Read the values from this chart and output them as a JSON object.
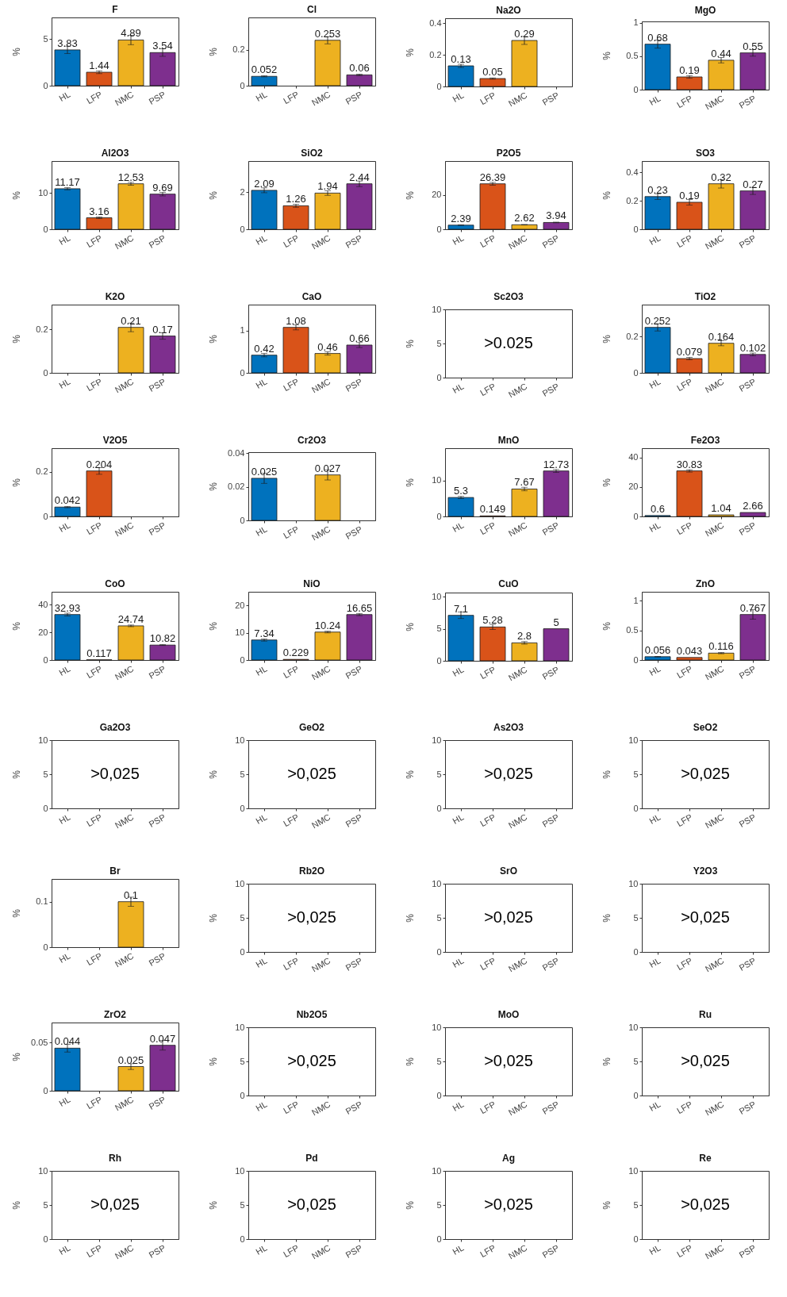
{
  "chart_data": [
    {
      "type": "bar",
      "title": "F",
      "categories": [
        "HL",
        "LFP",
        "NMC",
        "PSP"
      ],
      "values": [
        3.83,
        1.44,
        4.89,
        3.54
      ],
      "errors": [
        0.4,
        0.15,
        0.5,
        0.4
      ],
      "colors": [
        "#0072bd",
        "#d95319",
        "#edb120",
        "#7e2f8e"
      ],
      "ylabel": "%",
      "ylim": [
        0,
        7.3
      ],
      "yticks": [
        0,
        5
      ],
      "data_labels": true
    },
    {
      "type": "bar",
      "title": "Cl",
      "categories": [
        "HL",
        "LFP",
        "NMC",
        "PSP"
      ],
      "values": [
        0.052,
        null,
        0.253,
        0.06
      ],
      "errors": [
        0.003,
        null,
        0.02,
        0.004
      ],
      "colors": [
        "#0072bd",
        null,
        "#edb120",
        "#7e2f8e"
      ],
      "ylabel": "%",
      "ylim": [
        0,
        0.38
      ],
      "yticks": [
        0,
        0.2
      ],
      "data_labels": true
    },
    {
      "type": "bar",
      "title": "Na2O",
      "categories": [
        "HL",
        "LFP",
        "NMC",
        "PSP"
      ],
      "values": [
        0.13,
        0.05,
        0.29,
        null
      ],
      "errors": [
        0.01,
        0.004,
        0.025,
        null
      ],
      "colors": [
        "#0072bd",
        "#d95319",
        "#edb120",
        null
      ],
      "ylabel": "%",
      "ylim": [
        0,
        0.43
      ],
      "yticks": [
        0,
        0.2,
        0.4
      ],
      "data_labels": true
    },
    {
      "type": "bar",
      "title": "MgO",
      "categories": [
        "HL",
        "LFP",
        "NMC",
        "PSP"
      ],
      "values": [
        0.68,
        0.19,
        0.44,
        0.55
      ],
      "errors": [
        0.06,
        0.02,
        0.04,
        0.05
      ],
      "colors": [
        "#0072bd",
        "#d95319",
        "#edb120",
        "#7e2f8e"
      ],
      "ylabel": "%",
      "ylim": [
        0,
        1.02
      ],
      "yticks": [
        0,
        0.5,
        1
      ],
      "data_labels": true
    },
    {
      "type": "bar",
      "title": "Al2O3",
      "categories": [
        "HL",
        "LFP",
        "NMC",
        "PSP"
      ],
      "values": [
        11.17,
        3.16,
        12.53,
        9.69
      ],
      "errors": [
        0.3,
        0.2,
        0.4,
        0.5
      ],
      "colors": [
        "#0072bd",
        "#d95319",
        "#edb120",
        "#7e2f8e"
      ],
      "ylabel": "%",
      "ylim": [
        0,
        18.8
      ],
      "yticks": [
        0,
        10
      ],
      "data_labels": true
    },
    {
      "type": "bar",
      "title": "SiO2",
      "categories": [
        "HL",
        "LFP",
        "NMC",
        "PSP"
      ],
      "values": [
        2.09,
        1.26,
        1.94,
        2.44
      ],
      "errors": [
        0.13,
        0.08,
        0.12,
        0.15
      ],
      "colors": [
        "#0072bd",
        "#d95319",
        "#edb120",
        "#7e2f8e"
      ],
      "ylabel": "%",
      "ylim": [
        0,
        3.66
      ],
      "yticks": [
        0,
        2
      ],
      "data_labels": true
    },
    {
      "type": "bar",
      "title": "P2O5",
      "categories": [
        "HL",
        "LFP",
        "NMC",
        "PSP"
      ],
      "values": [
        2.39,
        26.39,
        2.62,
        3.94
      ],
      "errors": [
        0.1,
        0.8,
        0.1,
        0.2
      ],
      "colors": [
        "#0072bd",
        "#d95319",
        "#edb120",
        "#7e2f8e"
      ],
      "ylabel": "%",
      "ylim": [
        0,
        39.6
      ],
      "yticks": [
        0,
        20
      ],
      "data_labels": true
    },
    {
      "type": "bar",
      "title": "SO3",
      "categories": [
        "HL",
        "LFP",
        "NMC",
        "PSP"
      ],
      "values": [
        0.23,
        0.19,
        0.32,
        0.27
      ],
      "errors": [
        0.02,
        0.02,
        0.03,
        0.025
      ],
      "colors": [
        "#0072bd",
        "#d95319",
        "#edb120",
        "#7e2f8e"
      ],
      "ylabel": "%",
      "ylim": [
        0,
        0.48
      ],
      "yticks": [
        0,
        0.2,
        0.4
      ],
      "data_labels": true
    },
    {
      "type": "bar",
      "title": "K2O",
      "categories": [
        "HL",
        "LFP",
        "NMC",
        "PSP"
      ],
      "values": [
        null,
        null,
        0.21,
        0.17
      ],
      "errors": [
        null,
        null,
        0.02,
        0.015
      ],
      "colors": [
        null,
        null,
        "#edb120",
        "#7e2f8e"
      ],
      "ylabel": "%",
      "ylim": [
        0,
        0.315
      ],
      "yticks": [
        0,
        0.2
      ],
      "data_labels": true
    },
    {
      "type": "bar",
      "title": "CaO",
      "categories": [
        "HL",
        "LFP",
        "NMC",
        "PSP"
      ],
      "values": [
        0.42,
        1.08,
        0.46,
        0.66
      ],
      "errors": [
        0.04,
        0.06,
        0.04,
        0.06
      ],
      "colors": [
        "#0072bd",
        "#d95319",
        "#edb120",
        "#7e2f8e"
      ],
      "ylabel": "%",
      "ylim": [
        0,
        1.62
      ],
      "yticks": [
        0,
        1
      ],
      "data_labels": true
    },
    {
      "type": "bar",
      "title": "Sc2O3",
      "categories": [
        "HL",
        "LFP",
        "NMC",
        "PSP"
      ],
      "values": [
        null,
        null,
        null,
        null
      ],
      "ylabel": "%",
      "ylim": [
        0,
        10
      ],
      "yticks": [
        0,
        5,
        10
      ],
      "annotations": [
        ">0.025"
      ]
    },
    {
      "type": "bar",
      "title": "TiO2",
      "categories": [
        "HL",
        "LFP",
        "NMC",
        "PSP"
      ],
      "values": [
        0.252,
        0.079,
        0.164,
        0.102
      ],
      "errors": [
        0.02,
        0.007,
        0.014,
        0.008
      ],
      "colors": [
        "#0072bd",
        "#d95319",
        "#edb120",
        "#7e2f8e"
      ],
      "ylabel": "%",
      "ylim": [
        0,
        0.378
      ],
      "yticks": [
        0,
        0.2
      ],
      "data_labels": true
    },
    {
      "type": "bar",
      "title": "V2O5",
      "categories": [
        "HL",
        "LFP",
        "NMC",
        "PSP"
      ],
      "values": [
        0.042,
        0.204,
        null,
        null
      ],
      "errors": [
        0.003,
        0.015,
        null,
        null
      ],
      "colors": [
        "#0072bd",
        "#d95319",
        null,
        null
      ],
      "ylabel": "%",
      "ylim": [
        0,
        0.306
      ],
      "yticks": [
        0,
        0.2
      ],
      "data_labels": true
    },
    {
      "type": "bar",
      "title": "Cr2O3",
      "categories": [
        "HL",
        "LFP",
        "NMC",
        "PSP"
      ],
      "values": [
        0.025,
        null,
        0.027,
        null
      ],
      "errors": [
        0.003,
        null,
        0.003,
        null
      ],
      "colors": [
        "#0072bd",
        null,
        "#edb120",
        null
      ],
      "ylabel": "%",
      "ylim": [
        0,
        0.0405
      ],
      "yticks": [
        0,
        0.02,
        0.04
      ],
      "data_labels": true
    },
    {
      "type": "bar",
      "title": "MnO",
      "categories": [
        "HL",
        "LFP",
        "NMC",
        "PSP"
      ],
      "values": [
        5.3,
        0.149,
        7.67,
        12.73
      ],
      "errors": [
        0.3,
        null,
        0.5,
        0.4
      ],
      "colors": [
        "#0072bd",
        "#d95319",
        "#edb120",
        "#7e2f8e"
      ],
      "ylabel": "%",
      "ylim": [
        0,
        19.1
      ],
      "yticks": [
        0,
        10
      ],
      "data_labels": true
    },
    {
      "type": "bar",
      "title": "Fe2O3",
      "categories": [
        "HL",
        "LFP",
        "NMC",
        "PSP"
      ],
      "values": [
        0.6,
        30.83,
        1.04,
        2.66
      ],
      "errors": [
        null,
        0.8,
        null,
        null
      ],
      "colors": [
        "#0072bd",
        "#d95319",
        "#edb120",
        "#7e2f8e"
      ],
      "ylabel": "%",
      "ylim": [
        0,
        46.2
      ],
      "yticks": [
        0,
        20,
        40
      ],
      "data_labels": true
    },
    {
      "type": "bar",
      "title": "CoO",
      "categories": [
        "HL",
        "LFP",
        "NMC",
        "PSP"
      ],
      "values": [
        32.93,
        0.117,
        24.74,
        10.82
      ],
      "errors": [
        1,
        null,
        0.6,
        0.3
      ],
      "colors": [
        "#0072bd",
        "#d95319",
        "#edb120",
        "#7e2f8e"
      ],
      "ylabel": "%",
      "ylim": [
        0,
        49.4
      ],
      "yticks": [
        0,
        20,
        40
      ],
      "data_labels": true
    },
    {
      "type": "bar",
      "title": "NiO",
      "categories": [
        "HL",
        "LFP",
        "NMC",
        "PSP"
      ],
      "values": [
        7.34,
        0.229,
        10.24,
        16.65
      ],
      "errors": [
        0.4,
        null,
        0.3,
        0.4
      ],
      "colors": [
        "#0072bd",
        "#d95319",
        "#edb120",
        "#7e2f8e"
      ],
      "ylabel": "%",
      "ylim": [
        0,
        25
      ],
      "yticks": [
        0,
        10,
        20
      ],
      "data_labels": true
    },
    {
      "type": "bar",
      "title": "CuO",
      "categories": [
        "HL",
        "LFP",
        "NMC",
        "PSP"
      ],
      "values": [
        7.1,
        5.28,
        2.8,
        5
      ],
      "errors": [
        0.5,
        0.4,
        0.2,
        null
      ],
      "colors": [
        "#0072bd",
        "#d95319",
        "#edb120",
        "#7e2f8e"
      ],
      "ylabel": "%",
      "ylim": [
        0,
        10.65
      ],
      "yticks": [
        0,
        5,
        10
      ],
      "data_labels": true
    },
    {
      "type": "bar",
      "title": "ZnO",
      "categories": [
        "HL",
        "LFP",
        "NMC",
        "PSP"
      ],
      "values": [
        0.056,
        0.043,
        0.116,
        0.767
      ],
      "errors": [
        0.005,
        null,
        0.01,
        0.08
      ],
      "colors": [
        "#0072bd",
        "#d95319",
        "#edb120",
        "#7e2f8e"
      ],
      "ylabel": "%",
      "ylim": [
        0,
        1.15
      ],
      "yticks": [
        0,
        0.5,
        1
      ],
      "data_labels": true
    },
    {
      "type": "bar",
      "title": "Ga2O3",
      "categories": [
        "HL",
        "LFP",
        "NMC",
        "PSP"
      ],
      "values": [
        null,
        null,
        null,
        null
      ],
      "ylabel": "%",
      "ylim": [
        0,
        10
      ],
      "yticks": [
        0,
        5,
        10
      ],
      "annotations": [
        ">0,025"
      ]
    },
    {
      "type": "bar",
      "title": "GeO2",
      "categories": [
        "HL",
        "LFP",
        "NMC",
        "PSP"
      ],
      "values": [
        null,
        null,
        null,
        null
      ],
      "ylabel": "%",
      "ylim": [
        0,
        10
      ],
      "yticks": [
        0,
        5,
        10
      ],
      "annotations": [
        ">0,025"
      ]
    },
    {
      "type": "bar",
      "title": "As2O3",
      "categories": [
        "HL",
        "LFP",
        "NMC",
        "PSP"
      ],
      "values": [
        null,
        null,
        null,
        null
      ],
      "ylabel": "%",
      "ylim": [
        0,
        10
      ],
      "yticks": [
        0,
        5,
        10
      ],
      "annotations": [
        ">0,025"
      ]
    },
    {
      "type": "bar",
      "title": "SeO2",
      "categories": [
        "HL",
        "LFP",
        "NMC",
        "PSP"
      ],
      "values": [
        null,
        null,
        null,
        null
      ],
      "ylabel": "%",
      "ylim": [
        0,
        10
      ],
      "yticks": [
        0,
        5,
        10
      ],
      "annotations": [
        ">0,025"
      ]
    },
    {
      "type": "bar",
      "title": "Br",
      "categories": [
        "HL",
        "LFP",
        "NMC",
        "PSP"
      ],
      "values": [
        null,
        null,
        0.1,
        null
      ],
      "errors": [
        null,
        null,
        0.01,
        null
      ],
      "colors": [
        null,
        null,
        "#edb120",
        null
      ],
      "ylabel": "%",
      "ylim": [
        0,
        0.15
      ],
      "yticks": [
        0,
        0.1
      ],
      "data_labels": true
    },
    {
      "type": "bar",
      "title": "Rb2O",
      "categories": [
        "HL",
        "LFP",
        "NMC",
        "PSP"
      ],
      "values": [
        null,
        null,
        null,
        null
      ],
      "ylabel": "%",
      "ylim": [
        0,
        10
      ],
      "yticks": [
        0,
        5,
        10
      ],
      "annotations": [
        ">0,025"
      ]
    },
    {
      "type": "bar",
      "title": "SrO",
      "categories": [
        "HL",
        "LFP",
        "NMC",
        "PSP"
      ],
      "values": [
        null,
        null,
        null,
        null
      ],
      "ylabel": "%",
      "ylim": [
        0,
        10
      ],
      "yticks": [
        0,
        5,
        10
      ],
      "annotations": [
        ">0,025"
      ]
    },
    {
      "type": "bar",
      "title": "Y2O3",
      "categories": [
        "HL",
        "LFP",
        "NMC",
        "PSP"
      ],
      "values": [
        null,
        null,
        null,
        null
      ],
      "ylabel": "%",
      "ylim": [
        0,
        10
      ],
      "yticks": [
        0,
        5,
        10
      ],
      "annotations": [
        ">0,025"
      ]
    },
    {
      "type": "bar",
      "title": "ZrO2",
      "categories": [
        "HL",
        "LFP",
        "NMC",
        "PSP"
      ],
      "values": [
        0.044,
        null,
        0.025,
        0.047
      ],
      "errors": [
        0.004,
        null,
        0.003,
        0.005
      ],
      "colors": [
        "#0072bd",
        null,
        "#edb120",
        "#7e2f8e"
      ],
      "ylabel": "%",
      "ylim": [
        0,
        0.0705
      ],
      "yticks": [
        0,
        0.05
      ],
      "data_labels": true
    },
    {
      "type": "bar",
      "title": "Nb2O5",
      "categories": [
        "HL",
        "LFP",
        "NMC",
        "PSP"
      ],
      "values": [
        null,
        null,
        null,
        null
      ],
      "ylabel": "%",
      "ylim": [
        0,
        10
      ],
      "yticks": [
        0,
        5,
        10
      ],
      "annotations": [
        ">0,025"
      ]
    },
    {
      "type": "bar",
      "title": "MoO",
      "categories": [
        "HL",
        "LFP",
        "NMC",
        "PSP"
      ],
      "values": [
        null,
        null,
        null,
        null
      ],
      "ylabel": "%",
      "ylim": [
        0,
        10
      ],
      "yticks": [
        0,
        5,
        10
      ],
      "annotations": [
        ">0,025"
      ]
    },
    {
      "type": "bar",
      "title": "Ru",
      "categories": [
        "HL",
        "LFP",
        "NMC",
        "PSP"
      ],
      "values": [
        null,
        null,
        null,
        null
      ],
      "ylabel": "%",
      "ylim": [
        0,
        10
      ],
      "yticks": [
        0,
        5,
        10
      ],
      "annotations": [
        ">0,025"
      ]
    },
    {
      "type": "bar",
      "title": "Rh",
      "categories": [
        "HL",
        "LFP",
        "NMC",
        "PSP"
      ],
      "values": [
        null,
        null,
        null,
        null
      ],
      "ylabel": "%",
      "ylim": [
        0,
        10
      ],
      "yticks": [
        0,
        5,
        10
      ],
      "annotations": [
        ">0,025"
      ]
    },
    {
      "type": "bar",
      "title": "Pd",
      "categories": [
        "HL",
        "LFP",
        "NMC",
        "PSP"
      ],
      "values": [
        null,
        null,
        null,
        null
      ],
      "ylabel": "%",
      "ylim": [
        0,
        10
      ],
      "yticks": [
        0,
        5,
        10
      ],
      "annotations": [
        ">0,025"
      ]
    },
    {
      "type": "bar",
      "title": "Ag",
      "categories": [
        "HL",
        "LFP",
        "NMC",
        "PSP"
      ],
      "values": [
        null,
        null,
        null,
        null
      ],
      "ylabel": "%",
      "ylim": [
        0,
        10
      ],
      "yticks": [
        0,
        5,
        10
      ],
      "annotations": [
        ">0,025"
      ]
    },
    {
      "type": "bar",
      "title": "Re",
      "categories": [
        "HL",
        "LFP",
        "NMC",
        "PSP"
      ],
      "values": [
        null,
        null,
        null,
        null
      ],
      "ylabel": "%",
      "ylim": [
        0,
        10
      ],
      "yticks": [
        0,
        5,
        10
      ],
      "annotations": [
        ">0,025"
      ]
    }
  ]
}
